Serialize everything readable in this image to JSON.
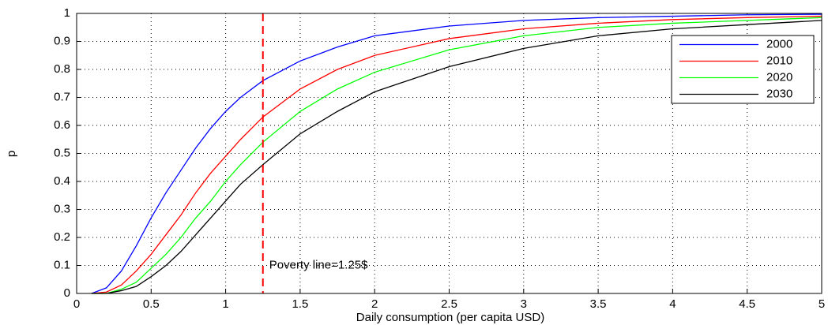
{
  "chart_data": {
    "type": "line",
    "xlabel": "Daily consumption (per capita USD)",
    "ylabel": "p",
    "x": [
      0.1,
      0.2,
      0.3,
      0.4,
      0.5,
      0.6,
      0.7,
      0.8,
      0.9,
      1.0,
      1.1,
      1.25,
      1.5,
      1.75,
      2.0,
      2.5,
      3,
      3.5,
      4,
      4.5,
      5
    ],
    "series": [
      {
        "name": "2000",
        "color": "#0000ff",
        "values": [
          0,
          0.02,
          0.08,
          0.17,
          0.27,
          0.36,
          0.44,
          0.52,
          0.59,
          0.65,
          0.7,
          0.76,
          0.83,
          0.88,
          0.92,
          0.955,
          0.975,
          0.985,
          0.99,
          0.995,
          0.997
        ]
      },
      {
        "name": "2010",
        "color": "#ff0000",
        "values": [
          0,
          0.005,
          0.03,
          0.08,
          0.14,
          0.21,
          0.28,
          0.36,
          0.43,
          0.49,
          0.55,
          0.63,
          0.73,
          0.8,
          0.85,
          0.91,
          0.945,
          0.965,
          0.978,
          0.985,
          0.99
        ]
      },
      {
        "name": "2020",
        "color": "#00ff00",
        "values": [
          0,
          0,
          0.015,
          0.04,
          0.09,
          0.14,
          0.2,
          0.27,
          0.33,
          0.4,
          0.46,
          0.54,
          0.65,
          0.73,
          0.79,
          0.87,
          0.92,
          0.95,
          0.965,
          0.975,
          0.985
        ]
      },
      {
        "name": "2030",
        "color": "#000000",
        "values": [
          0,
          0,
          0.01,
          0.025,
          0.06,
          0.1,
          0.15,
          0.21,
          0.27,
          0.33,
          0.39,
          0.46,
          0.57,
          0.65,
          0.72,
          0.81,
          0.875,
          0.92,
          0.945,
          0.96,
          0.975
        ]
      }
    ],
    "vline": {
      "x": 1.25,
      "label": "Poverty line=1.25$",
      "color": "#ff0000"
    },
    "xlim": [
      0,
      5
    ],
    "xticks": [
      0,
      0.5,
      1,
      1.5,
      2,
      2.5,
      3,
      3.5,
      4,
      4.5,
      5
    ],
    "ylim": [
      0,
      1
    ],
    "yticks": [
      0,
      0.1,
      0.2,
      0.3,
      0.4,
      0.5,
      0.6,
      0.7,
      0.8,
      0.9,
      1
    ],
    "grid": true,
    "legend": "upper right"
  }
}
